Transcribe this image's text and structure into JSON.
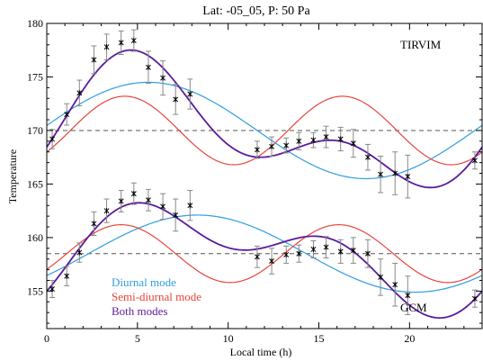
{
  "chart_data": {
    "type": "line",
    "title": "Lat: -05_05, P: 50 Pa",
    "xlabel": "Local time (h)",
    "ylabel": "Temperature",
    "xlim": [
      0,
      24
    ],
    "ylim": [
      151.5,
      180
    ],
    "xticks": [
      0,
      5,
      10,
      15,
      20
    ],
    "yticks": [
      155,
      160,
      165,
      170,
      175,
      180
    ],
    "annotations": {
      "upper": "TIRVIM",
      "lower": "GCM"
    },
    "legend": {
      "placement": "bottom-left",
      "entries": [
        {
          "label": "Diurnal mode",
          "color": "#2f9de0"
        },
        {
          "label": "Semi-diurnal mode",
          "color": "#e8443a"
        },
        {
          "label": "Both modes",
          "color": "#5b1b9c"
        }
      ]
    },
    "colors": {
      "diurnal": "#2f9de0",
      "semidiurnal": "#e8443a",
      "both": "#5b1b9c",
      "points": "#000000",
      "errorbars": "#888888",
      "mean": "#555555"
    },
    "groups": [
      {
        "name": "TIRVIM",
        "mean": 170.0,
        "diurnal": {
          "amplitude": 4.5,
          "phase_h": 5.6
        },
        "semidiurnal": {
          "amplitude": 3.2,
          "phase_h": 4.3
        },
        "observations": [
          {
            "x": 0.3,
            "y": 169.2,
            "err": 0.9
          },
          {
            "x": 1.1,
            "y": 171.5,
            "err": 1.0
          },
          {
            "x": 1.8,
            "y": 173.5,
            "err": 1.2
          },
          {
            "x": 2.6,
            "y": 176.6,
            "err": 1.3
          },
          {
            "x": 3.3,
            "y": 177.8,
            "err": 1.2
          },
          {
            "x": 4.1,
            "y": 178.2,
            "err": 1.1
          },
          {
            "x": 4.8,
            "y": 178.4,
            "err": 1.0
          },
          {
            "x": 5.6,
            "y": 175.9,
            "err": 1.5
          },
          {
            "x": 6.4,
            "y": 174.9,
            "err": 1.6
          },
          {
            "x": 7.1,
            "y": 172.9,
            "err": 1.4
          },
          {
            "x": 7.9,
            "y": 173.4,
            "err": 1.4
          },
          {
            "x": 11.6,
            "y": 168.2,
            "err": 0.8
          },
          {
            "x": 12.4,
            "y": 168.5,
            "err": 0.9
          },
          {
            "x": 13.2,
            "y": 168.6,
            "err": 0.7
          },
          {
            "x": 13.9,
            "y": 169.0,
            "err": 0.8
          },
          {
            "x": 14.7,
            "y": 169.1,
            "err": 0.7
          },
          {
            "x": 15.4,
            "y": 169.4,
            "err": 1.0
          },
          {
            "x": 16.2,
            "y": 169.2,
            "err": 1.1
          },
          {
            "x": 16.9,
            "y": 168.8,
            "err": 1.3
          },
          {
            "x": 17.7,
            "y": 167.5,
            "err": 1.2
          },
          {
            "x": 18.4,
            "y": 165.9,
            "err": 1.7
          },
          {
            "x": 19.2,
            "y": 166.0,
            "err": 2.0
          },
          {
            "x": 19.9,
            "y": 165.7,
            "err": 2.0
          },
          {
            "x": 23.6,
            "y": 167.2,
            "err": 0.8
          }
        ]
      },
      {
        "name": "GCM",
        "mean": 158.5,
        "diurnal": {
          "amplitude": 3.6,
          "phase_h": 8.3
        },
        "semidiurnal": {
          "amplitude": 2.7,
          "phase_h": 4.1
        },
        "observations": [
          {
            "x": 0.3,
            "y": 155.2,
            "err": 0.8
          },
          {
            "x": 1.1,
            "y": 156.4,
            "err": 0.9
          },
          {
            "x": 1.8,
            "y": 158.6,
            "err": 0.9
          },
          {
            "x": 2.6,
            "y": 161.3,
            "err": 1.1
          },
          {
            "x": 3.3,
            "y": 162.5,
            "err": 1.1
          },
          {
            "x": 4.1,
            "y": 163.4,
            "err": 1.0
          },
          {
            "x": 4.8,
            "y": 164.1,
            "err": 1.0
          },
          {
            "x": 5.6,
            "y": 163.5,
            "err": 1.0
          },
          {
            "x": 6.4,
            "y": 162.9,
            "err": 1.2
          },
          {
            "x": 7.1,
            "y": 162.1,
            "err": 1.5
          },
          {
            "x": 7.9,
            "y": 163.0,
            "err": 1.4
          },
          {
            "x": 11.6,
            "y": 158.2,
            "err": 1.0
          },
          {
            "x": 12.4,
            "y": 157.8,
            "err": 1.2
          },
          {
            "x": 13.2,
            "y": 158.4,
            "err": 0.8
          },
          {
            "x": 13.9,
            "y": 158.5,
            "err": 0.8
          },
          {
            "x": 14.7,
            "y": 158.9,
            "err": 0.8
          },
          {
            "x": 15.4,
            "y": 159.1,
            "err": 1.0
          },
          {
            "x": 16.2,
            "y": 158.7,
            "err": 1.1
          },
          {
            "x": 16.9,
            "y": 158.8,
            "err": 1.2
          },
          {
            "x": 17.7,
            "y": 158.5,
            "err": 1.3
          },
          {
            "x": 18.4,
            "y": 156.3,
            "err": 1.7
          },
          {
            "x": 19.2,
            "y": 155.6,
            "err": 2.0
          },
          {
            "x": 19.9,
            "y": 154.6,
            "err": 1.8
          },
          {
            "x": 23.6,
            "y": 154.3,
            "err": 0.8
          }
        ]
      }
    ]
  }
}
